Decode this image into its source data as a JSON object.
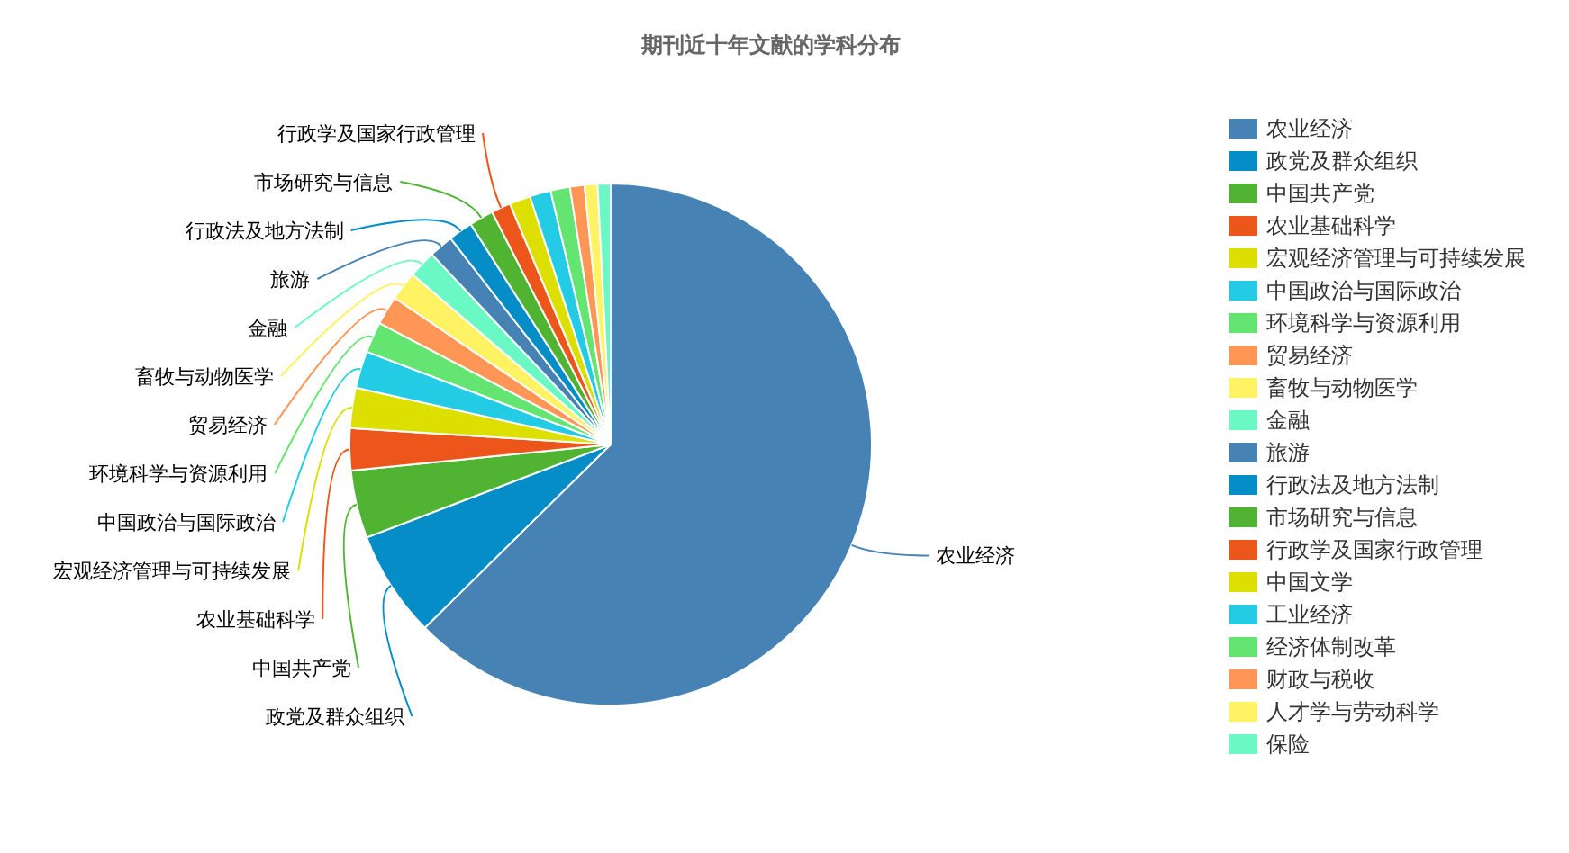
{
  "chart_data": {
    "type": "pie",
    "title": "期刊近十年文献的学科分布",
    "categories": [
      "农业经济",
      "政党及群众组织",
      "中国共产党",
      "农业基础科学",
      "宏观经济管理与可持续发展",
      "中国政治与国际政治",
      "环境科学与资源利用",
      "贸易经济",
      "畜牧与动物医学",
      "金融",
      "旅游",
      "行政法及地方法制",
      "市场研究与信息",
      "行政学及国家行政管理",
      "中国文学",
      "工业经济",
      "经济体制改革",
      "财政与税收",
      "人才学与劳动科学",
      "保险"
    ],
    "values": [
      62.6,
      6.6,
      4.2,
      2.6,
      2.5,
      2.3,
      1.9,
      1.8,
      1.8,
      1.7,
      1.5,
      1.5,
      1.5,
      1.2,
      1.3,
      1.3,
      1.2,
      0.9,
      0.8,
      0.8
    ],
    "colors": [
      "#4682b4",
      "#058dc7",
      "#50b432",
      "#ed561b",
      "#dddf00",
      "#24cbe5",
      "#64e572",
      "#ff9655",
      "#fff263",
      "#6af9c4",
      "#4682b4",
      "#058dc7",
      "#50b432",
      "#ed561b",
      "#dddf00",
      "#24cbe5",
      "#64e572",
      "#ff9655",
      "#fff263",
      "#6af9c4"
    ],
    "legend": "right"
  }
}
